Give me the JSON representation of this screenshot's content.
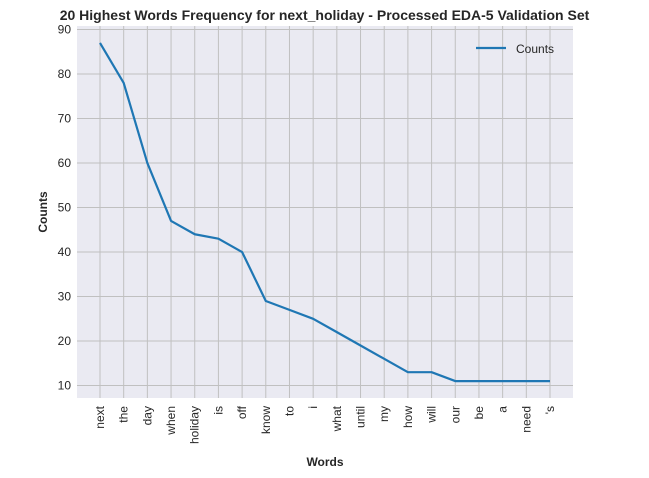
{
  "chart_data": {
    "type": "line",
    "title": "20 Highest Words Frequency for next_holiday - Processed EDA-5 Validation Set",
    "xlabel": "Words",
    "ylabel": "Counts",
    "categories": [
      "next",
      "the",
      "day",
      "when",
      "holiday",
      "is",
      "off",
      "know",
      "to",
      "i",
      "what",
      "until",
      "my",
      "how",
      "will",
      "our",
      "be",
      "a",
      "need",
      "'s"
    ],
    "series": [
      {
        "name": "Counts",
        "values": [
          87,
          78,
          60,
          47,
          44,
          43,
          40,
          29,
          27,
          25,
          22,
          19,
          16,
          13,
          13,
          11,
          11,
          11,
          11,
          11
        ],
        "color": "#1f77b4"
      }
    ],
    "ylim": [
      7.2,
      90.8
    ],
    "yticks": [
      10,
      20,
      30,
      40,
      50,
      60,
      70,
      80,
      90
    ],
    "grid": true,
    "legend": "top-right",
    "colors": {
      "plot_background": "#eaeaf2",
      "grid": "#c0c0c0",
      "text": "#262626"
    }
  }
}
